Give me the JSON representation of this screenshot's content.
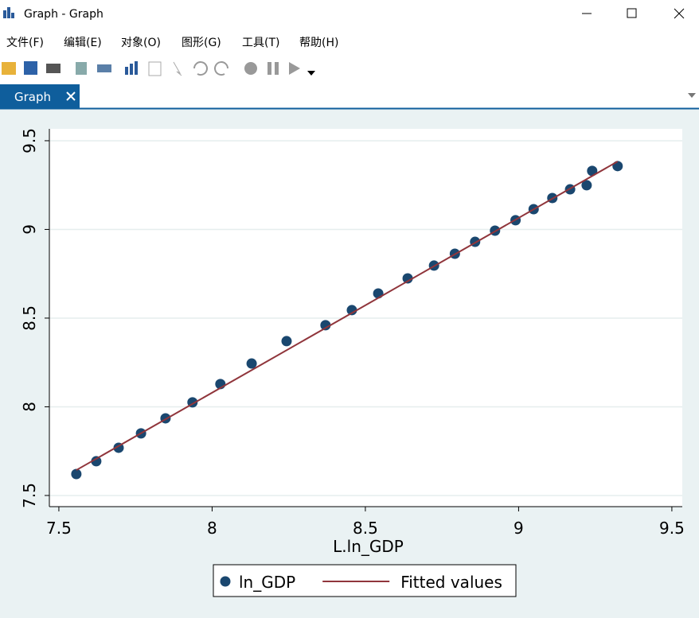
{
  "window": {
    "title": "Graph - Graph",
    "menu": [
      "文件(F)",
      "编辑(E)",
      "对象(O)",
      "图形(G)",
      "工具(T)",
      "帮助(H)"
    ],
    "tab": "Graph"
  },
  "chart_data": {
    "type": "scatter",
    "x_label": "L.ln_GDP",
    "series": [
      {
        "name": "ln_GDP",
        "color": "#1a476f",
        "type": "scatter",
        "x": [
          7.557,
          7.622,
          7.695,
          7.768,
          7.848,
          7.936,
          8.027,
          8.129,
          8.243,
          8.37,
          8.456,
          8.542,
          8.638,
          8.724,
          8.792,
          8.858,
          8.923,
          8.99,
          9.049,
          9.11,
          9.168,
          9.222,
          9.24,
          9.323
        ],
        "values": [
          7.621,
          7.693,
          7.769,
          7.85,
          7.935,
          8.025,
          8.128,
          8.244,
          8.37,
          8.46,
          8.545,
          8.639,
          8.724,
          8.796,
          8.863,
          8.93,
          8.993,
          9.052,
          9.114,
          9.177,
          9.226,
          9.249,
          9.33,
          9.357
        ]
      },
      {
        "name": "Fitted values",
        "color": "#90353b",
        "type": "line",
        "x": [
          7.557,
          9.323
        ],
        "values": [
          7.643,
          9.383
        ]
      }
    ],
    "xlim": [
      7.469,
      9.534
    ],
    "ylim": [
      7.437,
      9.567
    ],
    "xticks": [
      7.5,
      8,
      8.5,
      9,
      9.5
    ],
    "yticks": [
      7.5,
      8,
      8.5,
      9,
      9.5
    ],
    "grid": true,
    "legend": "bottom"
  }
}
